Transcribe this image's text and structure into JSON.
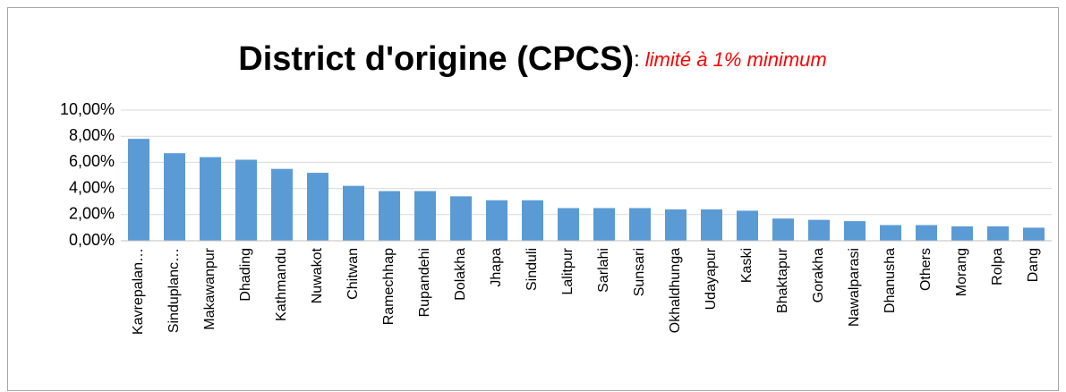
{
  "chart_data": {
    "type": "bar",
    "title": "District d'origine (CPCS)",
    "title_separator": ":",
    "subtitle": "limité à 1% minimum",
    "categories": [
      "Kavrepalan…",
      "Sinduplanc…",
      "Makawanpur",
      "Dhading",
      "Kathmandu",
      "Nuwakot",
      "Chitwan",
      "Ramechhap",
      "Rupandehi",
      "Dolakha",
      "Jhapa",
      "Sinduli",
      "Lalitpur",
      "Sarlahi",
      "Sunsari",
      "Okhaldhunga",
      "Udayapur",
      "Kaski",
      "Bhaktapur",
      "Gorakha",
      "Nawalparasi",
      "Dhanusha",
      "Others",
      "Morang",
      "Rolpa",
      "Dang"
    ],
    "values": [
      7.8,
      6.7,
      6.4,
      6.2,
      5.5,
      5.2,
      4.2,
      3.8,
      3.8,
      3.4,
      3.1,
      3.1,
      2.5,
      2.5,
      2.5,
      2.4,
      2.4,
      2.3,
      1.7,
      1.6,
      1.5,
      1.2,
      1.2,
      1.1,
      1.1,
      1.0
    ],
    "color": "#5b9bd5",
    "ylim": [
      0,
      10
    ],
    "yticks": [
      {
        "value": 0,
        "label": "0,00%"
      },
      {
        "value": 2,
        "label": "2,00%"
      },
      {
        "value": 4,
        "label": "4,00%"
      },
      {
        "value": 6,
        "label": "6,00%"
      },
      {
        "value": 8,
        "label": "8,00%"
      },
      {
        "value": 10,
        "label": "10,00%"
      }
    ],
    "grid": true
  }
}
